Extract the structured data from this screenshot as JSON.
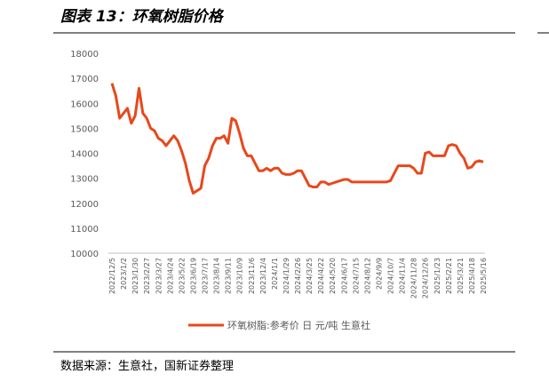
{
  "chart_data": {
    "type": "line",
    "title": "图表 13：环氧树脂价格",
    "source": "数据来源：生意社，国新证券整理",
    "categories": [
      "2022/12/5",
      null,
      null,
      "2023/1/2",
      null,
      null,
      "2023/1/30",
      null,
      null,
      "2023/2/27",
      null,
      null,
      "2023/3/27",
      null,
      null,
      "2023/4/24",
      null,
      null,
      "2023/5/22",
      null,
      null,
      "2023/6/19",
      null,
      null,
      "2023/7/17",
      null,
      null,
      "2023/8/14",
      null,
      null,
      "2023/9/11",
      null,
      null,
      "2023/10/9",
      null,
      null,
      "2023/11/6",
      null,
      null,
      "2023/12/4",
      null,
      null,
      "2024/1/1",
      null,
      null,
      "2024/1/29",
      null,
      null,
      "2024/2/26",
      null,
      null,
      "2024/3/25",
      null,
      null,
      "2024/4/22",
      null,
      null,
      "2024/5/20",
      null,
      null,
      "2024/6/17",
      null,
      null,
      "2024/7/15",
      null,
      null,
      "2024/8/12",
      null,
      null,
      "2024/9/9",
      null,
      null,
      "2024/10/7",
      null,
      null,
      "2024/11/4",
      null,
      null,
      "2024/11/28",
      null,
      null,
      "2024/12/26",
      null,
      null,
      "2025/1/23",
      null,
      null,
      "2025/2/21",
      null,
      null,
      "2025/3/21",
      null,
      null,
      "2025/4/18",
      null,
      null,
      "2025/5/16"
    ],
    "series": [
      {
        "name": "环氧树脂:参考价 日 元/吨 生意社",
        "color": "#e8481c",
        "values": [
          16800,
          16300,
          15400,
          15600,
          15800,
          15200,
          15500,
          16600,
          15600,
          15400,
          15000,
          14900,
          14600,
          14500,
          14300,
          14500,
          14700,
          14500,
          14100,
          13600,
          12900,
          12400,
          12500,
          12600,
          13500,
          13800,
          14300,
          14600,
          14600,
          14700,
          14400,
          15400,
          15300,
          14800,
          14200,
          13900,
          13900,
          13600,
          13300,
          13300,
          13400,
          13300,
          13400,
          13400,
          13200,
          13150,
          13150,
          13200,
          13300,
          13300,
          13000,
          12700,
          12650,
          12650,
          12850,
          12850,
          12750,
          12800,
          12850,
          12900,
          12950,
          12950,
          12850,
          12850,
          12850,
          12850,
          12850,
          12850,
          12850,
          12850,
          12850,
          12850,
          12900,
          13200,
          13500,
          13500,
          13500,
          13500,
          13400,
          13200,
          13200,
          14000,
          14050,
          13900,
          13900,
          13900,
          13900,
          14300,
          14350,
          14300,
          14000,
          13800,
          13400,
          13450,
          13650,
          13700,
          13650
        ]
      }
    ],
    "ylim": [
      10000,
      18000
    ],
    "yticks": [
      10000,
      11000,
      12000,
      13000,
      14000,
      15000,
      16000,
      17000,
      18000
    ],
    "grid": false,
    "legend": "bottom"
  }
}
